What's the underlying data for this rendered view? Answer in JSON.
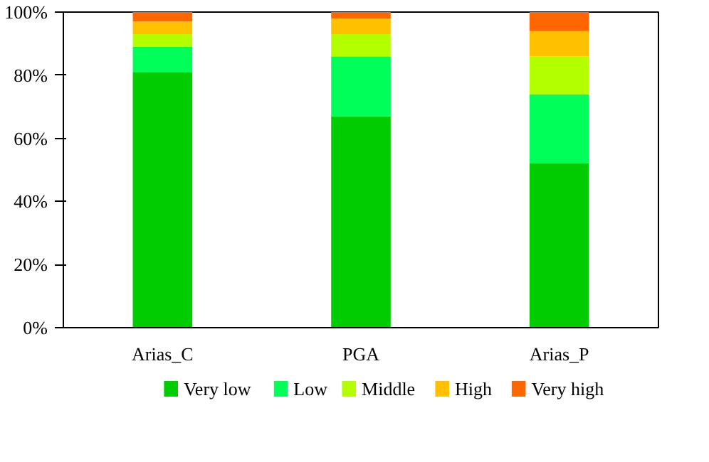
{
  "chart_data": {
    "type": "bar",
    "stacked": true,
    "categories": [
      "Arias_C",
      "PGA",
      "Arias_P"
    ],
    "series": [
      {
        "name": "Very low",
        "color": "#00cc00",
        "values": [
          81,
          67,
          52
        ]
      },
      {
        "name": "Low",
        "color": "#00ff59",
        "values": [
          8,
          19,
          22
        ]
      },
      {
        "name": "Middle",
        "color": "#b3ff00",
        "values": [
          4,
          7,
          12
        ]
      },
      {
        "name": "High",
        "color": "#ffc000",
        "values": [
          4,
          5,
          8
        ]
      },
      {
        "name": "Very high",
        "color": "#ff6600",
        "values": [
          3,
          2,
          6
        ]
      }
    ],
    "ylim": [
      0,
      100
    ],
    "yticks": [
      {
        "value": 0,
        "label": "0%"
      },
      {
        "value": 20,
        "label": "20%"
      },
      {
        "value": 40,
        "label": "40%"
      },
      {
        "value": 60,
        "label": "60%"
      },
      {
        "value": 80,
        "label": "80%"
      },
      {
        "value": 100,
        "label": "100%"
      }
    ],
    "grid": false,
    "legend": "bottom"
  }
}
